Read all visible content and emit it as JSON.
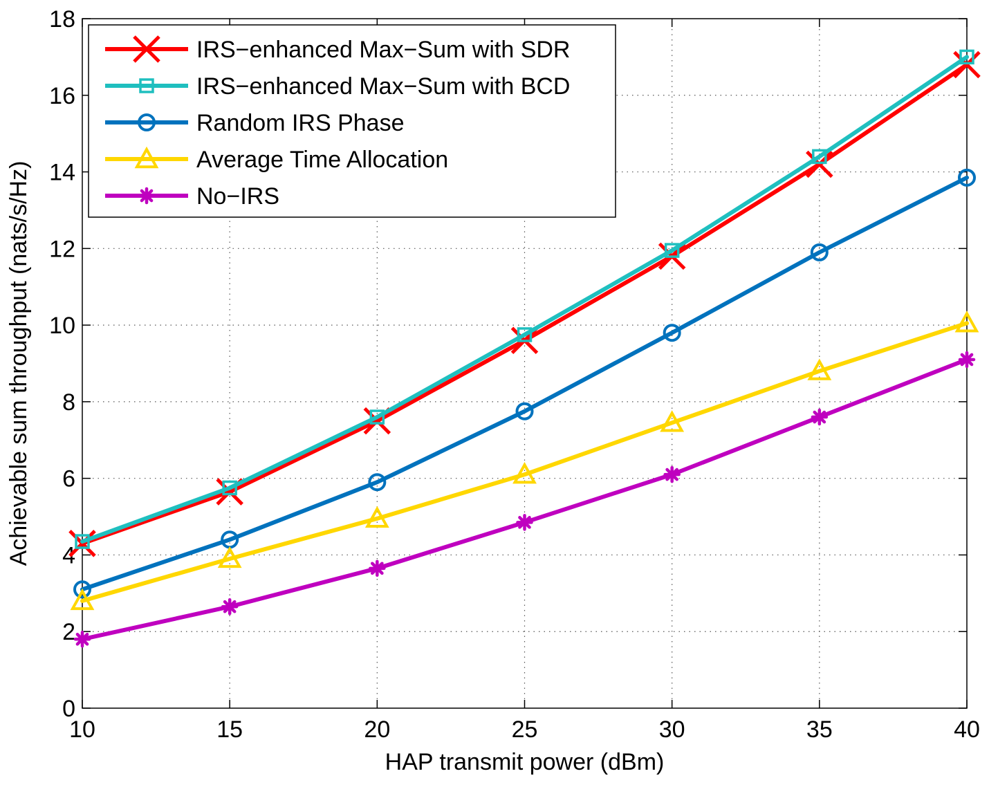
{
  "chart_data": {
    "type": "line",
    "title": "",
    "xlabel": "HAP transmit power (dBm)",
    "ylabel": "Achievable sum throughput (nats/s/Hz)",
    "x": [
      10,
      15,
      20,
      25,
      30,
      35,
      40
    ],
    "xlim": [
      10,
      40
    ],
    "ylim": [
      0,
      18
    ],
    "xticks": [
      10,
      15,
      20,
      25,
      30,
      35,
      40
    ],
    "yticks": [
      0,
      2,
      4,
      6,
      8,
      10,
      12,
      14,
      16,
      18
    ],
    "grid": true,
    "legend_position": "top-left",
    "series": [
      {
        "name": "IRS−enhanced Max−Sum with SDR",
        "color": "#ff0000",
        "marker": "x-cross",
        "values": [
          4.3,
          5.65,
          7.5,
          9.6,
          11.8,
          14.2,
          16.8
        ]
      },
      {
        "name": "IRS−enhanced Max−Sum with BCD",
        "color": "#1fbfbf",
        "marker": "square",
        "values": [
          4.35,
          5.75,
          7.6,
          9.75,
          11.95,
          14.4,
          17.0
        ]
      },
      {
        "name": "Random IRS Phase",
        "color": "#0072bd",
        "marker": "circle",
        "values": [
          3.1,
          4.4,
          5.9,
          7.75,
          9.8,
          11.9,
          13.85
        ]
      },
      {
        "name": "Average Time Allocation",
        "color": "#ffd700",
        "marker": "triangle",
        "values": [
          2.8,
          3.9,
          4.95,
          6.1,
          7.45,
          8.8,
          10.05
        ]
      },
      {
        "name": "No−IRS",
        "color": "#bf00bf",
        "marker": "asterisk",
        "values": [
          1.8,
          2.65,
          3.65,
          4.85,
          6.1,
          7.6,
          9.1
        ]
      }
    ]
  }
}
